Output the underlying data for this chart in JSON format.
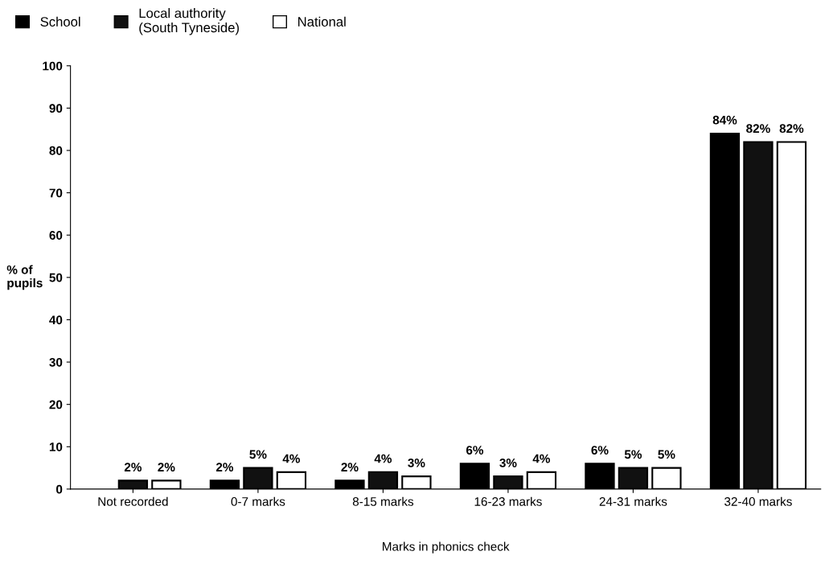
{
  "chart_data": {
    "type": "bar",
    "xlabel": "Marks in phonics check",
    "ylabel": "% of\npupils",
    "categories": [
      "Not recorded",
      "0-7 marks",
      "8-15 marks",
      "16-23 marks",
      "24-31 marks",
      "32-40 marks"
    ],
    "series": [
      {
        "name": "School",
        "color": "#000000",
        "values": [
          null,
          2,
          2,
          6,
          6,
          84
        ],
        "value_labels": [
          null,
          "2%",
          "2%",
          "6%",
          "6%",
          "84%"
        ]
      },
      {
        "name": "Local authority\n(South Tyneside)",
        "color": "#111111",
        "values": [
          2,
          5,
          4,
          3,
          5,
          82
        ],
        "value_labels": [
          "2%",
          "5%",
          "4%",
          "3%",
          "5%",
          "82%"
        ]
      },
      {
        "name": "National",
        "color": "#ffffff",
        "values": [
          2,
          4,
          3,
          4,
          5,
          82
        ],
        "value_labels": [
          "2%",
          "4%",
          "3%",
          "4%",
          "5%",
          "82%"
        ]
      }
    ],
    "ylim": [
      0,
      100
    ],
    "yticks": [
      0,
      10,
      20,
      30,
      40,
      50,
      60,
      70,
      80,
      90,
      100
    ],
    "grid": false,
    "legend": "top left"
  }
}
